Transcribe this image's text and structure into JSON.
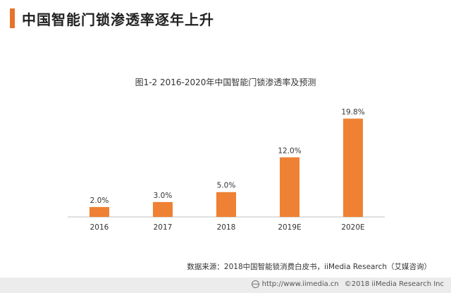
{
  "header": {
    "title": "中国智能门锁渗透率逐年上升",
    "accent_color": "#e8722b"
  },
  "chart_data": {
    "type": "bar",
    "title": "图1-2 2016-2020年中国智能门锁渗透率及预测",
    "categories": [
      "2016",
      "2017",
      "2018",
      "2019E",
      "2020E"
    ],
    "values": [
      2.0,
      3.0,
      5.0,
      12.0,
      19.8
    ],
    "value_labels": [
      "2.0%",
      "3.0%",
      "5.0%",
      "12.0%",
      "19.8%"
    ],
    "unit": "%",
    "bar_color": "#ee8133",
    "xlabel": "",
    "ylabel": "",
    "ylim": [
      0,
      20
    ],
    "grid": false,
    "legend": "none"
  },
  "source": "数据来源：2018中国智能锁消费白皮书，iiMedia Research（艾媒咨询）",
  "footer": {
    "url": "http://www.iimedia.cn",
    "copyright": "©2018  iiMedia Research Inc"
  }
}
